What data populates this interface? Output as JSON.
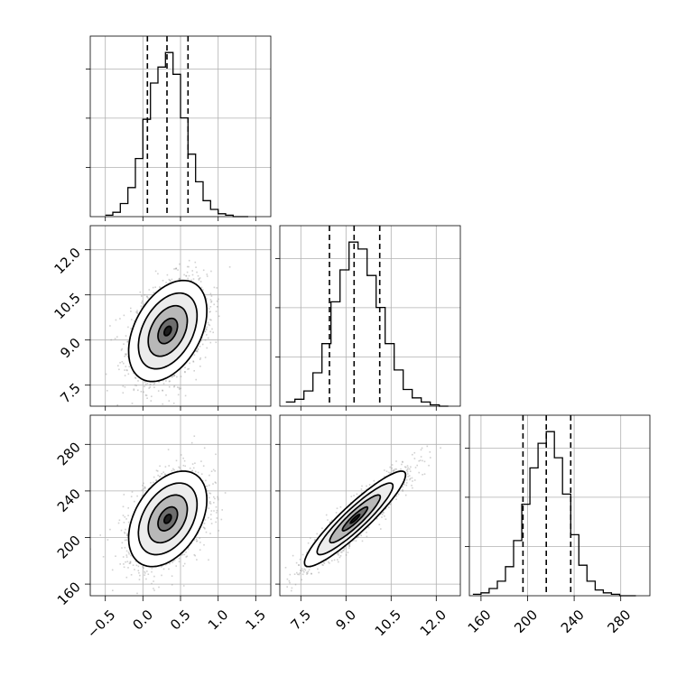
{
  "chart_data": {
    "type": "corner",
    "parameters": [
      {
        "mean": 0.33,
        "std": 0.26,
        "axis_range": [
          -0.7,
          1.7
        ],
        "ticks": [
          -0.5,
          0.0,
          0.5,
          1.0,
          1.5
        ],
        "tick_labels": [
          "−0.5",
          "0.0",
          "0.5",
          "1.0",
          "1.5"
        ],
        "quantiles": [
          0.06,
          0.32,
          0.6
        ]
      },
      {
        "mean": 9.3,
        "std": 0.84,
        "axis_range": [
          6.8,
          12.8
        ],
        "ticks": [
          7.5,
          9.0,
          10.5,
          12.0
        ],
        "tick_labels": [
          "7.5",
          "9.0",
          "10.5",
          "12.0"
        ],
        "quantiles": [
          8.45,
          9.27,
          10.12
        ]
      },
      {
        "mean": 216,
        "std": 20.5,
        "axis_range": [
          150,
          305
        ],
        "ticks": [
          160,
          200,
          240,
          280
        ],
        "tick_labels": [
          "160",
          "200",
          "240",
          "280"
        ],
        "quantiles": [
          196,
          216,
          237
        ]
      }
    ],
    "histograms": [
      {
        "parameter": 0,
        "bin_edges": [
          -0.5,
          -0.4,
          -0.3,
          -0.2,
          -0.1,
          0.0,
          0.1,
          0.2,
          0.3,
          0.4,
          0.5,
          0.6,
          0.7,
          0.8,
          0.9,
          1.0,
          1.1,
          1.2,
          1.3,
          1.4
        ],
        "counts": [
          1,
          3,
          9,
          20,
          40,
          67,
          92,
          103,
          113,
          98,
          68,
          43,
          24,
          11,
          5,
          2,
          1,
          0,
          0
        ]
      },
      {
        "parameter": 1,
        "bin_edges": [
          7.0,
          7.3,
          7.6,
          7.9,
          8.2,
          8.5,
          8.8,
          9.1,
          9.4,
          9.7,
          10.0,
          10.3,
          10.6,
          10.9,
          11.2,
          11.5,
          11.8,
          12.1,
          12.4
        ],
        "counts": [
          3,
          5,
          11,
          24,
          45,
          75,
          98,
          118,
          113,
          94,
          71,
          45,
          26,
          12,
          6,
          3,
          1,
          0
        ]
      },
      {
        "parameter": 2,
        "bin_edges": [
          153,
          160,
          167,
          174,
          181,
          188,
          195,
          202,
          209,
          216,
          223,
          230,
          237,
          244,
          251,
          258,
          265,
          272,
          279,
          286,
          293
        ],
        "counts": [
          1,
          2,
          5,
          10,
          20,
          38,
          63,
          88,
          105,
          113,
          95,
          70,
          42,
          21,
          10,
          4,
          2,
          1,
          0,
          0
        ]
      }
    ],
    "pairs": [
      {
        "x": 0,
        "y": 1,
        "correlation": 0.4
      },
      {
        "x": 0,
        "y": 2,
        "correlation": 0.4
      },
      {
        "x": 1,
        "y": 2,
        "correlation": 0.92
      }
    ],
    "contour_sigma_levels": [
      0.5,
      1.0,
      1.5,
      2.0
    ],
    "grid": true
  }
}
